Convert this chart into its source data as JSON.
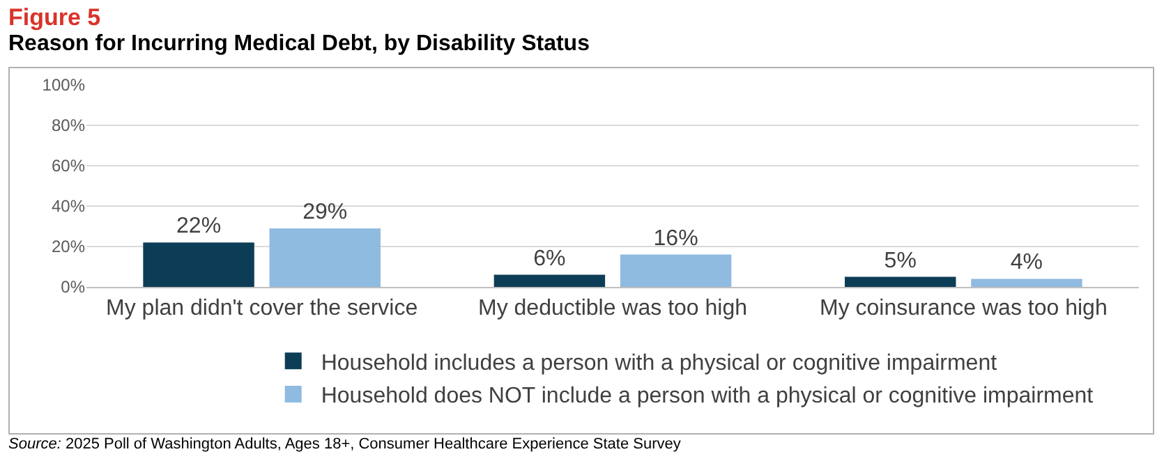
{
  "chart_data": {
    "type": "bar",
    "title": "Figure 5",
    "subtitle": "Reason for Incurring Medical Debt, by Disability Status",
    "categories": [
      "My plan didn't cover the service",
      "My deductible was too high",
      "My coinsurance was too high"
    ],
    "series": [
      {
        "name": "Household includes a person with a physical or cognitive impairment",
        "color": "#0d3d56",
        "values": [
          22,
          6,
          5
        ],
        "value_labels": [
          "22%",
          "6%",
          "5%"
        ]
      },
      {
        "name": "Household does NOT include a person with a physical or cognitive impairment",
        "color": "#8fbbe1",
        "values": [
          29,
          16,
          4
        ],
        "value_labels": [
          "29%",
          "16%",
          "4%"
        ]
      }
    ],
    "ylim": [
      0,
      100
    ],
    "yticks": [
      {
        "value": 0,
        "label": "0%"
      },
      {
        "value": 20,
        "label": "20%"
      },
      {
        "value": 40,
        "label": "40%"
      },
      {
        "value": 60,
        "label": "60%"
      },
      {
        "value": 80,
        "label": "80%"
      },
      {
        "value": 100,
        "label": "100%"
      }
    ],
    "grid": "y",
    "legend": "bottom",
    "annotations": [
      "Source: 2025 Poll of Washington Adults, Ages 18+, Consumer Healthcare Experience State Survey"
    ]
  }
}
